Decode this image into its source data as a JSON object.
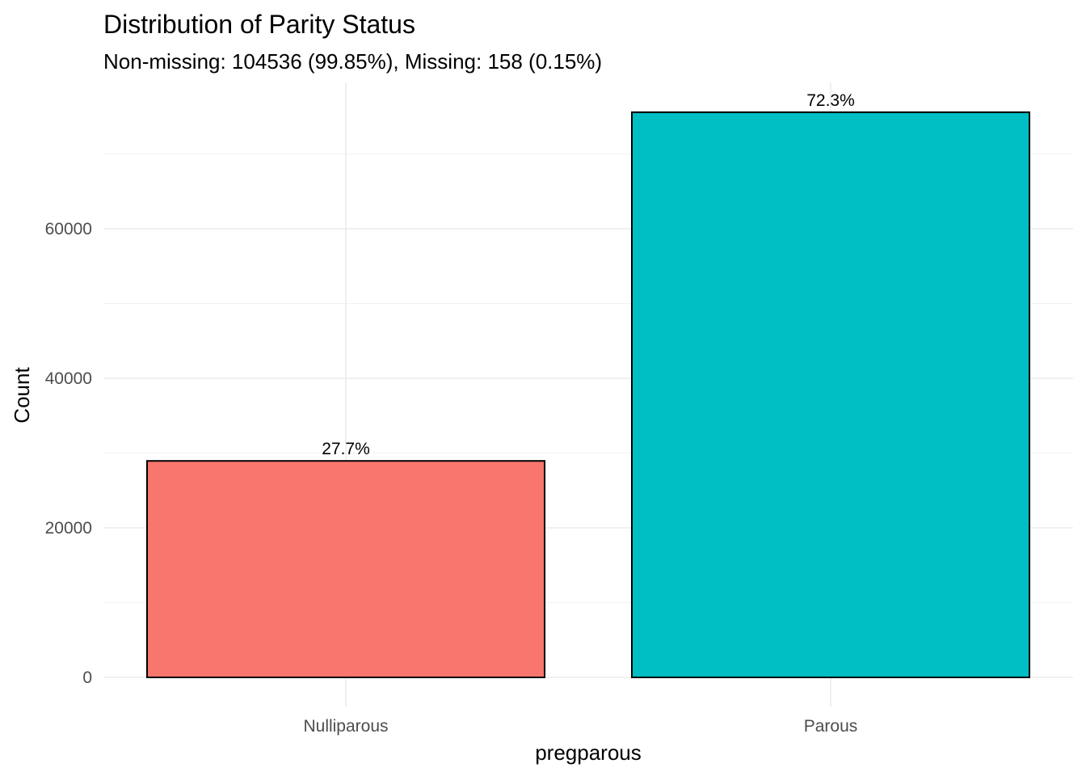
{
  "chart_data": {
    "type": "bar",
    "title": "Distribution of Parity Status",
    "subtitle": "Non-missing: 104536 (99.85%), Missing: 158 (0.15%)",
    "xlabel": "pregparous",
    "ylabel": "Count",
    "categories": [
      "Nulliparous",
      "Parous"
    ],
    "values": [
      28950,
      75586
    ],
    "data_labels": [
      "27.7%",
      "72.3%"
    ],
    "colors": [
      "#F8766D",
      "#00BFC4"
    ],
    "bar_outline": "#000000",
    "ylim": [
      0,
      78500
    ],
    "y_ticks": [
      0,
      20000,
      40000,
      60000
    ],
    "y_tick_labels": [
      "0",
      "20000",
      "40000",
      "60000"
    ],
    "grid": true,
    "legend": "none"
  }
}
